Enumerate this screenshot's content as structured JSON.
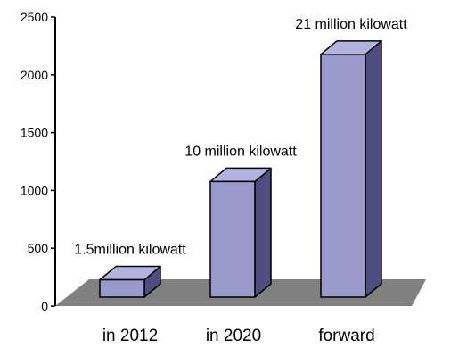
{
  "chart_data": {
    "type": "bar",
    "categories": [
      "in 2012",
      "in 2020",
      "forward"
    ],
    "values": [
      150,
      1000,
      2100
    ],
    "data_labels": [
      "1.5million kilowatt",
      "10 million kilowatt",
      "21 million kilowatt"
    ],
    "ylim": [
      0,
      2500
    ],
    "yticks": [
      "0",
      "500",
      "1000",
      "1500",
      "2000",
      "2500"
    ],
    "title": "",
    "xlabel": "",
    "ylabel": "",
    "grid": false,
    "legend": "none",
    "colors": {
      "bar_front": "#9999CC",
      "bar_top": "#B3B3E0",
      "bar_side": "#4D4D80",
      "floor": "#808080",
      "axis": "#000000"
    }
  }
}
